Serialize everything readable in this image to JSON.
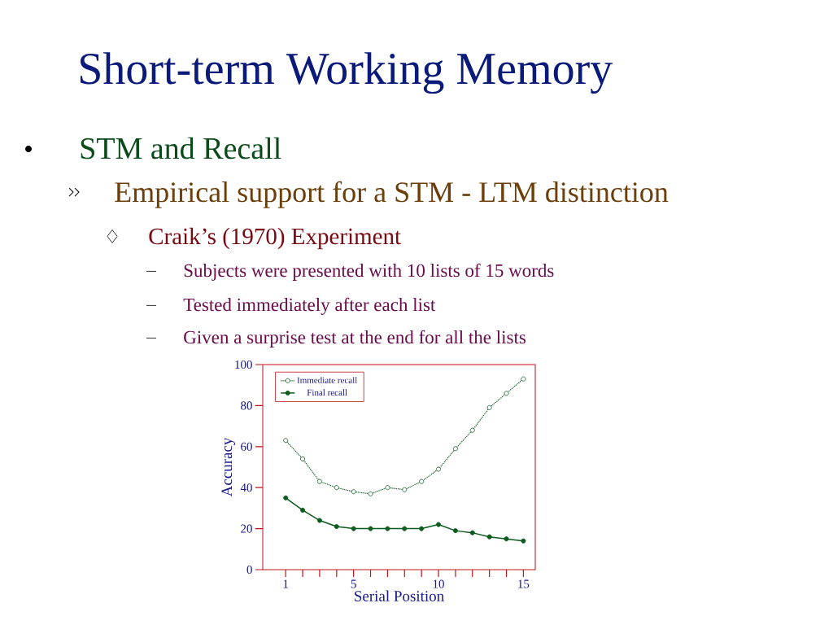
{
  "chart_data": {
    "type": "line",
    "title": "Short-term Working Memory",
    "subtitle": "STM and Recall",
    "annotations": [
      "Empirical support for a STM - LTM distinction",
      "Craik’s (1970) Experiment",
      "Subjects were presented with 10 lists of 15 words",
      "Tested immediately after each list",
      "Given a surprise test at the end for all the lists"
    ],
    "xlabel": "Serial Position",
    "ylabel": "Accuracy",
    "x": [
      1,
      2,
      3,
      4,
      5,
      6,
      7,
      8,
      9,
      10,
      11,
      12,
      13,
      14,
      15
    ],
    "series": [
      {
        "name": "Immediate recall",
        "color": "#0b5a1e",
        "line_style": "dotted",
        "values": [
          63,
          54,
          43,
          40,
          38,
          37,
          40,
          39,
          43,
          49,
          59,
          68,
          79,
          86,
          93
        ]
      },
      {
        "name": "Final recall",
        "color": "#0b5a1e",
        "line_style": "solid",
        "values": [
          35,
          29,
          24,
          21,
          20,
          20,
          20,
          20,
          20,
          22,
          19,
          18,
          16,
          15,
          14
        ]
      }
    ],
    "marker": "circle",
    "xlim": [
      -0.35,
      15.7
    ],
    "ylim": [
      0,
      100
    ],
    "xticks": [
      1,
      {
        "value": 2,
        "label": null
      },
      {
        "value": 3,
        "label": null
      },
      {
        "value": 4,
        "label": null
      },
      5,
      {
        "value": 6,
        "label": null
      },
      {
        "value": 7,
        "label": null
      },
      {
        "value": 8,
        "label": null
      },
      {
        "value": 9,
        "label": null
      },
      10,
      {
        "value": 11,
        "label": null
      },
      {
        "value": 12,
        "label": null
      },
      {
        "value": 13,
        "label": null
      },
      {
        "value": 14,
        "label": null
      },
      15
    ],
    "yticks": [
      0,
      20,
      40,
      60,
      80,
      100
    ],
    "legend": "top left",
    "grid": false
  }
}
